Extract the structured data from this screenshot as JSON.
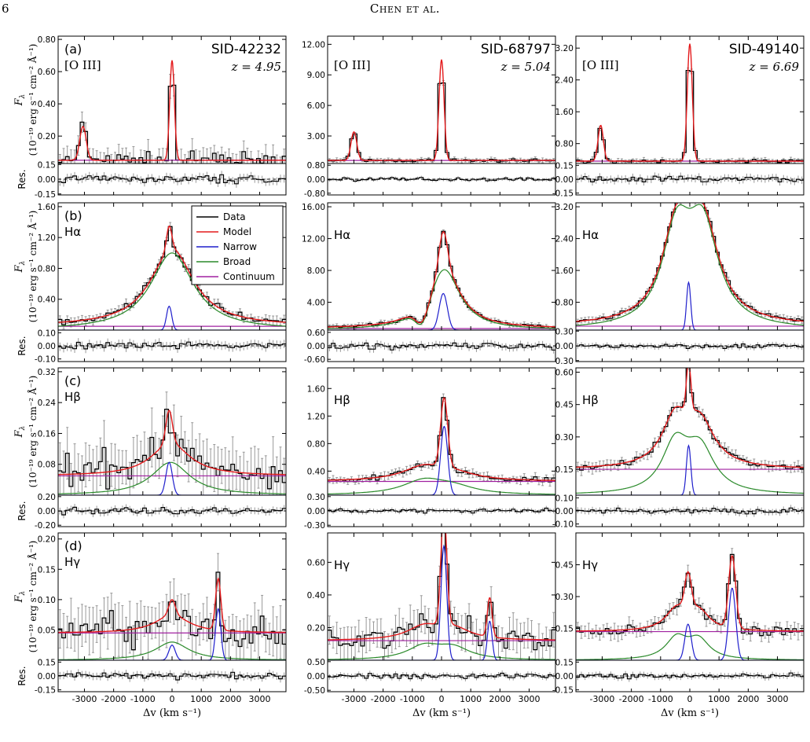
{
  "page_header": {
    "page_number": "6",
    "running_head": "Chen et al."
  },
  "labels": {
    "ylabel_flux_symbol": "F",
    "ylabel_flux_sub": "λ",
    "ylabel_flux_units": "(10⁻¹⁹ erg s⁻¹ cm⁻² Å⁻¹)",
    "ylabel_residual": "Res.",
    "xlabel": "Δv (km s⁻¹)",
    "x_ticks": [
      -3000,
      -2000,
      -1000,
      0,
      1000,
      2000,
      3000
    ],
    "x_range": [
      -3900,
      3900
    ]
  },
  "legend": {
    "placement": "top-right of panel (b), left column",
    "items": [
      {
        "name": "Data",
        "color": "#000000"
      },
      {
        "name": "Model",
        "color": "#e41a1c"
      },
      {
        "name": "Narrow",
        "color": "#1f1fcc"
      },
      {
        "name": "Broad",
        "color": "#2a8a2a"
      },
      {
        "name": "Continuum",
        "color": "#a020a0"
      }
    ]
  },
  "columns": [
    {
      "sid": "SID-42232",
      "redshift": "z = 4.95"
    },
    {
      "sid": "SID-68797",
      "redshift": "z = 5.04"
    },
    {
      "sid": "SID-49140",
      "redshift": "z = 6.69"
    }
  ],
  "rows": [
    {
      "panel_letter": "(a)",
      "line": "[O III]"
    },
    {
      "panel_letter": "(b)",
      "line": "Hα"
    },
    {
      "panel_letter": "(c)",
      "line": "Hβ"
    },
    {
      "panel_letter": "(d)",
      "line": "Hγ"
    }
  ],
  "chart_data": [
    {
      "type": "line",
      "title": "",
      "line": "[O III]",
      "column": "SID-42232",
      "main_yticks": [
        "0.20",
        "0.40",
        "0.60",
        "0.80"
      ],
      "main_ylim": [
        0.03,
        0.82
      ],
      "res_yticks": [
        "0.15",
        "0.00",
        "-0.15"
      ],
      "res_ylim": [
        -0.16,
        0.16
      ],
      "continuum": 0.05,
      "narrow": [
        {
          "center": -3050,
          "amp": 0.21,
          "sigma": 110
        },
        {
          "center": 0,
          "amp": 0.62,
          "sigma": 80
        }
      ],
      "broad": [],
      "noise_main": 0.06,
      "noise_res": 0.05
    },
    {
      "type": "line",
      "title": "",
      "line": "[O III]",
      "column": "SID-68797",
      "main_yticks": [
        "3.00",
        "6.00",
        "9.00",
        "12.00"
      ],
      "main_ylim": [
        0.3,
        12.8
      ],
      "res_yticks": [
        "0.80",
        "0.00",
        "-0.80"
      ],
      "res_ylim": [
        -0.9,
        0.9
      ],
      "continuum": 0.6,
      "narrow": [
        {
          "center": -3000,
          "amp": 2.8,
          "sigma": 100
        },
        {
          "center": 0,
          "amp": 9.9,
          "sigma": 85
        }
      ],
      "broad": [],
      "noise_main": 0.18,
      "noise_res": 0.12
    },
    {
      "type": "line",
      "title": "",
      "line": "[O III]",
      "column": "SID-49140",
      "main_yticks": [
        "0.80",
        "1.60",
        "2.40",
        "3.20"
      ],
      "main_ylim": [
        0.3,
        3.5
      ],
      "res_yticks": [
        "0.15",
        "0.00",
        "-0.15"
      ],
      "res_ylim": [
        -0.17,
        0.17
      ],
      "continuum": 0.36,
      "narrow": [
        {
          "center": -3050,
          "amp": 0.9,
          "sigma": 90
        },
        {
          "center": 0,
          "amp": 2.95,
          "sigma": 85
        }
      ],
      "broad": [],
      "noise_main": 0.05,
      "noise_res": 0.05
    },
    {
      "type": "line",
      "title": "",
      "line": "Hα",
      "column": "SID-42232",
      "main_yticks": [
        "0.40",
        "0.80",
        "1.20",
        "1.60"
      ],
      "main_ylim": [
        0.0,
        1.65
      ],
      "res_yticks": [
        "0.10",
        "0.00",
        "-0.10"
      ],
      "res_ylim": [
        -0.12,
        0.12
      ],
      "continuum": 0.05,
      "narrow": [
        {
          "center": -100,
          "amp": 0.31,
          "sigma": 90
        }
      ],
      "broad": [
        {
          "center": 0,
          "amp": 1.0,
          "width": 900,
          "profile": "lorentz"
        }
      ],
      "noise_main": 0.05,
      "noise_res": 0.04
    },
    {
      "type": "line",
      "title": "",
      "line": "Hα",
      "column": "SID-68797",
      "main_yticks": [
        "4.00",
        "8.00",
        "12.00",
        "16.00"
      ],
      "main_ylim": [
        0.5,
        16.5
      ],
      "res_yticks": [
        "0.60",
        "0.00",
        "-0.60"
      ],
      "res_ylim": [
        -0.7,
        0.7
      ],
      "continuum": 0.7,
      "narrow": [
        {
          "center": 60,
          "amp": 4.6,
          "sigma": 140
        }
      ],
      "broad": [
        {
          "center": 100,
          "amp": 7.6,
          "width": 650,
          "profile": "lorentz"
        },
        {
          "center": -650,
          "amp": -2.3,
          "sigma": 220
        }
      ],
      "noise_main": 0.25,
      "noise_res": 0.2
    },
    {
      "type": "line",
      "title": "",
      "line": "Hα",
      "column": "SID-49140",
      "main_yticks": [
        "0.80",
        "1.60",
        "2.40",
        "3.20"
      ],
      "main_ylim": [
        0.1,
        3.3
      ],
      "res_yticks": [
        "0.30",
        "0.00",
        "-0.30"
      ],
      "res_ylim": [
        -0.32,
        0.32
      ],
      "continuum": 0.2,
      "narrow": [
        {
          "center": -40,
          "amp": 1.2,
          "sigma": 70
        }
      ],
      "broad": [
        {
          "center": -450,
          "amp": 2.25,
          "width": 600,
          "profile": "lorentz"
        },
        {
          "center": 450,
          "amp": 2.4,
          "width": 650,
          "profile": "lorentz"
        }
      ],
      "noise_main": 0.07,
      "noise_res": 0.07
    },
    {
      "type": "line",
      "title": "",
      "line": "Hβ",
      "column": "SID-42232",
      "main_yticks": [
        "0.08",
        "0.16",
        "0.24",
        "0.32"
      ],
      "main_ylim": [
        0.0,
        0.33
      ],
      "res_yticks": [
        "0.20",
        "0.00",
        "-0.20"
      ],
      "res_ylim": [
        -0.22,
        0.22
      ],
      "continuum": 0.05,
      "narrow": [
        {
          "center": -100,
          "amp": 0.085,
          "sigma": 110
        }
      ],
      "broad": [
        {
          "center": -50,
          "amp": 0.085,
          "width": 800,
          "profile": "lorentz"
        }
      ],
      "noise_main": 0.06,
      "noise_res": 0.06
    },
    {
      "type": "line",
      "title": "",
      "line": "Hβ",
      "column": "SID-68797",
      "main_yticks": [
        "0.40",
        "0.80",
        "1.20",
        "1.60"
      ],
      "main_ylim": [
        0.05,
        1.9
      ],
      "res_yticks": [
        "0.30",
        "0.00",
        "-0.30"
      ],
      "res_ylim": [
        -0.33,
        0.33
      ],
      "continuum": 0.25,
      "narrow": [
        {
          "center": 90,
          "amp": 1.0,
          "sigma": 120
        }
      ],
      "broad": [
        {
          "center": -600,
          "amp": 0.2,
          "width": 900,
          "profile": "lorentz"
        },
        {
          "center": 400,
          "amp": 0.1,
          "width": 900,
          "profile": "lorentz"
        }
      ],
      "noise_main": 0.05,
      "noise_res": 0.06
    },
    {
      "type": "line",
      "title": "",
      "line": "Hβ",
      "column": "SID-49140",
      "main_yticks": [
        "0.15",
        "0.30",
        "0.45",
        "0.60"
      ],
      "main_ylim": [
        0.03,
        0.62
      ],
      "res_yticks": [
        "0.10",
        "0.00",
        "-0.10"
      ],
      "res_ylim": [
        -0.12,
        0.12
      ],
      "continuum": 0.15,
      "narrow": [
        {
          "center": -40,
          "amp": 0.23,
          "sigma": 75
        }
      ],
      "broad": [
        {
          "center": -500,
          "amp": 0.22,
          "width": 550,
          "profile": "lorentz"
        },
        {
          "center": 350,
          "amp": 0.2,
          "width": 600,
          "profile": "lorentz"
        }
      ],
      "noise_main": 0.02,
      "noise_res": 0.03
    },
    {
      "type": "line",
      "title": "",
      "line": "Hγ",
      "column": "SID-42232",
      "main_yticks": [
        "0.05",
        "0.10",
        "0.15",
        "0.20"
      ],
      "main_ylim": [
        0.0,
        0.21
      ],
      "res_yticks": [
        "0.15",
        "0.00",
        "-0.15"
      ],
      "res_ylim": [
        -0.17,
        0.17
      ],
      "continuum": 0.045,
      "narrow": [
        {
          "center": 0,
          "amp": 0.025,
          "sigma": 110
        },
        {
          "center": 1580,
          "amp": 0.085,
          "sigma": 90
        }
      ],
      "broad": [
        {
          "center": 0,
          "amp": 0.03,
          "width": 700,
          "profile": "lorentz"
        }
      ],
      "noise_main": 0.035,
      "noise_res": 0.05
    },
    {
      "type": "line",
      "title": "",
      "line": "Hγ",
      "column": "SID-68797",
      "main_yticks": [
        "0.20",
        "0.40",
        "0.60"
      ],
      "main_ylim": [
        0.0,
        0.78
      ],
      "res_yticks": [
        "0.50",
        "0.00",
        "-0.50"
      ],
      "res_ylim": [
        -0.55,
        0.55
      ],
      "continuum": 0.12,
      "narrow": [
        {
          "center": 80,
          "amp": 0.7,
          "sigma": 100
        },
        {
          "center": 1650,
          "amp": 0.24,
          "sigma": 80
        }
      ],
      "broad": [
        {
          "center": -600,
          "amp": 0.08,
          "width": 700,
          "profile": "lorentz"
        },
        {
          "center": 400,
          "amp": 0.07,
          "width": 700,
          "profile": "lorentz"
        }
      ],
      "noise_main": 0.09,
      "noise_res": 0.12
    },
    {
      "type": "line",
      "title": "",
      "line": "Hγ",
      "column": "SID-49140",
      "main_yticks": [
        "0.15",
        "0.30",
        "0.45"
      ],
      "main_ylim": [
        0.0,
        0.6
      ],
      "res_yticks": [
        "0.15",
        "0.00",
        "-0.15"
      ],
      "res_ylim": [
        -0.17,
        0.17
      ],
      "continuum": 0.135,
      "narrow": [
        {
          "center": -60,
          "amp": 0.17,
          "sigma": 110
        },
        {
          "center": 1450,
          "amp": 0.34,
          "sigma": 120
        }
      ],
      "broad": [
        {
          "center": -450,
          "amp": 0.1,
          "width": 450,
          "profile": "lorentz"
        },
        {
          "center": 300,
          "amp": 0.09,
          "width": 450,
          "profile": "lorentz"
        }
      ],
      "noise_main": 0.03,
      "noise_res": 0.04
    }
  ]
}
